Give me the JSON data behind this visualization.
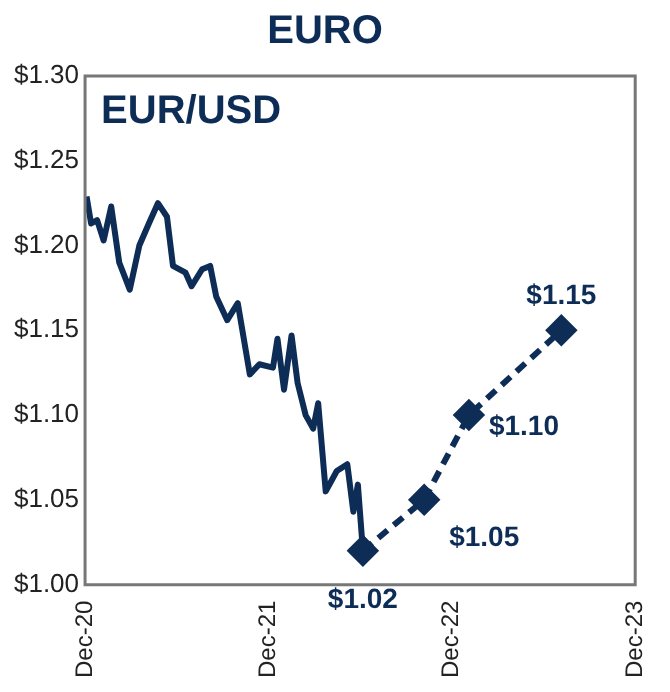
{
  "chart_data": {
    "type": "line",
    "title": "EURO",
    "annotations": [
      "EUR/USD"
    ],
    "xlim": [
      "2020-12-01",
      "2023-12-01"
    ],
    "xticks": [
      {
        "value": "2020-12-01",
        "label": "Dec-20"
      },
      {
        "value": "2021-12-01",
        "label": "Dec-21"
      },
      {
        "value": "2022-12-01",
        "label": "Dec-22"
      },
      {
        "value": "2023-12-01",
        "label": "Dec-23"
      }
    ],
    "ylim": [
      1.0,
      1.3
    ],
    "yticks": [
      {
        "value": 1.0,
        "label": "$1.00"
      },
      {
        "value": 1.05,
        "label": "$1.05"
      },
      {
        "value": 1.1,
        "label": "$1.10"
      },
      {
        "value": 1.15,
        "label": "$1.15"
      },
      {
        "value": 1.2,
        "label": "$1.20"
      },
      {
        "value": 1.25,
        "label": "$1.25"
      },
      {
        "value": 1.3,
        "label": "$1.30"
      }
    ],
    "grid": false,
    "legend": false,
    "series": [
      {
        "color": "#0d2d57",
        "marker": "none",
        "line_style": "solid",
        "x": [
          "2020-12-04",
          "2020-12-13",
          "2020-12-25",
          "2021-01-07",
          "2021-01-22",
          "2021-02-07",
          "2021-02-28",
          "2021-03-19",
          "2021-04-07",
          "2021-04-25",
          "2021-05-13",
          "2021-05-25",
          "2021-06-19",
          "2021-07-01",
          "2021-07-22",
          "2021-08-07",
          "2021-08-19",
          "2021-09-10",
          "2021-10-01",
          "2021-10-25",
          "2021-11-13",
          "2021-12-10",
          "2021-12-19",
          "2022-01-01",
          "2022-01-16",
          "2022-01-28",
          "2022-02-13",
          "2022-02-28",
          "2022-03-10",
          "2022-03-25",
          "2022-04-16",
          "2022-05-07",
          "2022-05-19",
          "2022-05-28",
          "2022-06-07"
        ],
        "values": [
          1.229,
          1.213,
          1.215,
          1.203,
          1.223,
          1.19,
          1.174,
          1.2,
          1.213,
          1.225,
          1.217,
          1.188,
          1.184,
          1.176,
          1.186,
          1.188,
          1.17,
          1.156,
          1.166,
          1.124,
          1.13,
          1.128,
          1.145,
          1.115,
          1.147,
          1.119,
          1.1,
          1.092,
          1.107,
          1.055,
          1.067,
          1.071,
          1.043,
          1.059,
          1.02
        ]
      },
      {
        "color": "#0d2d57",
        "marker": "diamond",
        "line_style": "dashed",
        "x": [
          "2022-06-07",
          "2022-10-07",
          "2023-01-04",
          "2023-07-07"
        ],
        "values": [
          1.02,
          1.05,
          1.1,
          1.15
        ],
        "value_labels": [
          "$1.02",
          "$1.05",
          "$1.10",
          "$1.15"
        ]
      }
    ]
  }
}
